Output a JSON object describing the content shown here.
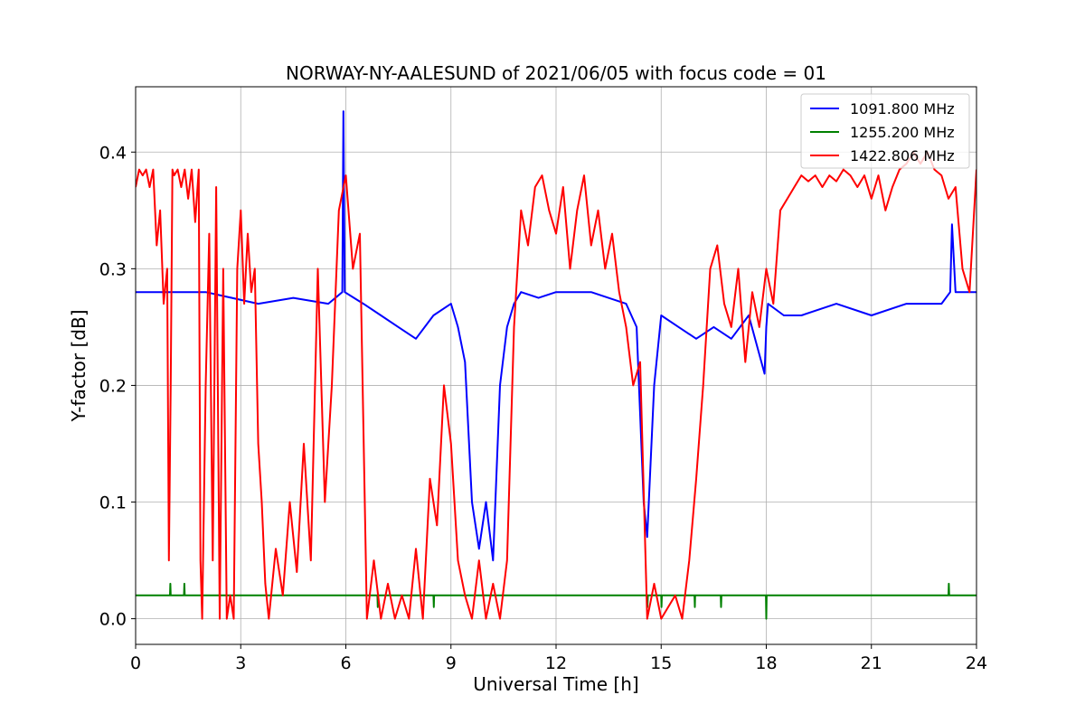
{
  "chart_data": {
    "type": "line",
    "title": "NORWAY-NY-AALESUND of 2021/06/05 with focus code = 01",
    "xlabel": "Universal Time [h]",
    "ylabel": "Y-factor [dB]",
    "xlim": [
      0,
      24
    ],
    "ylim": [
      -0.022,
      0.456
    ],
    "xticks": [
      0,
      3,
      6,
      9,
      12,
      15,
      18,
      21,
      24
    ],
    "yticks": [
      0.0,
      0.1,
      0.2,
      0.3,
      0.4
    ],
    "ytick_labels": [
      "0.0",
      "0.1",
      "0.2",
      "0.3",
      "0.4"
    ],
    "grid": true,
    "legend_position": "top-right",
    "series": [
      {
        "name": "1091.800 MHz",
        "color": "#0000ff",
        "x": [
          0,
          0.5,
          1.0,
          2.0,
          3.5,
          4.5,
          5.5,
          5.9,
          5.93,
          5.97,
          6.5,
          7.0,
          7.5,
          8.0,
          8.5,
          9.0,
          9.2,
          9.4,
          9.6,
          9.8,
          10.0,
          10.2,
          10.4,
          10.6,
          10.8,
          11.0,
          11.5,
          12.0,
          13.0,
          14.0,
          14.3,
          14.5,
          14.6,
          14.8,
          15.0,
          15.5,
          16.0,
          16.5,
          17.0,
          17.5,
          17.95,
          18.0,
          18.05,
          18.5,
          19.0,
          20.0,
          21.0,
          22.0,
          23.0,
          23.25,
          23.3,
          23.4,
          24
        ],
        "y": [
          0.28,
          0.28,
          0.28,
          0.28,
          0.27,
          0.275,
          0.27,
          0.28,
          0.435,
          0.28,
          0.27,
          0.26,
          0.25,
          0.24,
          0.26,
          0.27,
          0.25,
          0.22,
          0.1,
          0.06,
          0.1,
          0.05,
          0.2,
          0.25,
          0.27,
          0.28,
          0.275,
          0.28,
          0.28,
          0.27,
          0.25,
          0.1,
          0.07,
          0.2,
          0.26,
          0.25,
          0.24,
          0.25,
          0.24,
          0.26,
          0.21,
          0.25,
          0.27,
          0.26,
          0.26,
          0.27,
          0.26,
          0.27,
          0.27,
          0.28,
          0.338,
          0.28,
          0.28
        ]
      },
      {
        "name": "1255.200 MHz",
        "color": "#008000",
        "x": [
          0,
          0.98,
          0.99,
          1.0,
          1.38,
          1.39,
          1.4,
          6.9,
          6.91,
          6.92,
          8.5,
          8.51,
          8.52,
          14.6,
          14.61,
          14.62,
          15.0,
          15.01,
          15.02,
          15.95,
          15.96,
          15.97,
          16.7,
          16.71,
          16.72,
          17.99,
          18.0,
          18.01,
          23.2,
          23.21,
          23.22,
          24
        ],
        "y": [
          0.02,
          0.02,
          0.03,
          0.02,
          0.02,
          0.03,
          0.02,
          0.02,
          0.01,
          0.02,
          0.02,
          0.01,
          0.02,
          0.02,
          0.01,
          0.02,
          0.02,
          0.01,
          0.02,
          0.02,
          0.01,
          0.02,
          0.02,
          0.01,
          0.02,
          0.02,
          0.0,
          0.02,
          0.02,
          0.03,
          0.02,
          0.02
        ]
      },
      {
        "name": "1422.806 MHz",
        "color": "#ff0000",
        "x": [
          0,
          0.1,
          0.2,
          0.3,
          0.4,
          0.5,
          0.6,
          0.7,
          0.8,
          0.9,
          0.95,
          1.0,
          1.05,
          1.1,
          1.2,
          1.3,
          1.4,
          1.5,
          1.6,
          1.7,
          1.8,
          1.85,
          1.9,
          2.0,
          2.1,
          2.2,
          2.3,
          2.4,
          2.5,
          2.6,
          2.7,
          2.8,
          2.9,
          3.0,
          3.1,
          3.2,
          3.3,
          3.4,
          3.5,
          3.6,
          3.7,
          3.8,
          4.0,
          4.2,
          4.4,
          4.6,
          4.8,
          5.0,
          5.2,
          5.4,
          5.6,
          5.8,
          6.0,
          6.2,
          6.4,
          6.6,
          6.8,
          7.0,
          7.2,
          7.4,
          7.6,
          7.8,
          8.0,
          8.2,
          8.4,
          8.6,
          8.8,
          9.0,
          9.2,
          9.4,
          9.6,
          9.8,
          10.0,
          10.2,
          10.4,
          10.6,
          10.8,
          11.0,
          11.2,
          11.4,
          11.6,
          11.8,
          12.0,
          12.2,
          12.4,
          12.6,
          12.8,
          13.0,
          13.2,
          13.4,
          13.6,
          13.8,
          14.0,
          14.2,
          14.4,
          14.6,
          14.8,
          15.0,
          15.2,
          15.4,
          15.6,
          15.8,
          16.0,
          16.2,
          16.4,
          16.6,
          16.8,
          17.0,
          17.2,
          17.4,
          17.6,
          17.8,
          18.0,
          18.2,
          18.4,
          18.6,
          18.8,
          19.0,
          19.2,
          19.4,
          19.6,
          19.8,
          20.0,
          20.2,
          20.4,
          20.6,
          20.8,
          21.0,
          21.2,
          21.4,
          21.6,
          21.8,
          22.0,
          22.2,
          22.4,
          22.6,
          22.8,
          23.0,
          23.2,
          23.4,
          23.6,
          23.8,
          24.0
        ],
        "y": [
          0.37,
          0.385,
          0.38,
          0.385,
          0.37,
          0.385,
          0.32,
          0.35,
          0.27,
          0.3,
          0.05,
          0.2,
          0.385,
          0.38,
          0.385,
          0.37,
          0.385,
          0.36,
          0.385,
          0.34,
          0.385,
          0.05,
          0.0,
          0.2,
          0.33,
          0.05,
          0.37,
          0.0,
          0.3,
          0.0,
          0.02,
          0.0,
          0.3,
          0.35,
          0.27,
          0.33,
          0.28,
          0.3,
          0.15,
          0.1,
          0.03,
          0.0,
          0.06,
          0.02,
          0.1,
          0.04,
          0.15,
          0.05,
          0.3,
          0.1,
          0.2,
          0.35,
          0.38,
          0.3,
          0.33,
          0.0,
          0.05,
          0.0,
          0.03,
          0.0,
          0.02,
          0.0,
          0.06,
          0.0,
          0.12,
          0.08,
          0.2,
          0.15,
          0.05,
          0.02,
          0.0,
          0.05,
          0.0,
          0.03,
          0.0,
          0.05,
          0.25,
          0.35,
          0.32,
          0.37,
          0.38,
          0.35,
          0.33,
          0.37,
          0.3,
          0.35,
          0.38,
          0.32,
          0.35,
          0.3,
          0.33,
          0.28,
          0.25,
          0.2,
          0.22,
          0.0,
          0.03,
          0.0,
          0.01,
          0.02,
          0.0,
          0.05,
          0.12,
          0.2,
          0.3,
          0.32,
          0.27,
          0.25,
          0.3,
          0.22,
          0.28,
          0.25,
          0.3,
          0.27,
          0.35,
          0.36,
          0.37,
          0.38,
          0.375,
          0.38,
          0.37,
          0.38,
          0.375,
          0.385,
          0.38,
          0.37,
          0.38,
          0.36,
          0.38,
          0.35,
          0.37,
          0.385,
          0.39,
          0.4,
          0.39,
          0.4,
          0.385,
          0.38,
          0.36,
          0.37,
          0.3,
          0.28,
          0.385
        ]
      }
    ]
  }
}
